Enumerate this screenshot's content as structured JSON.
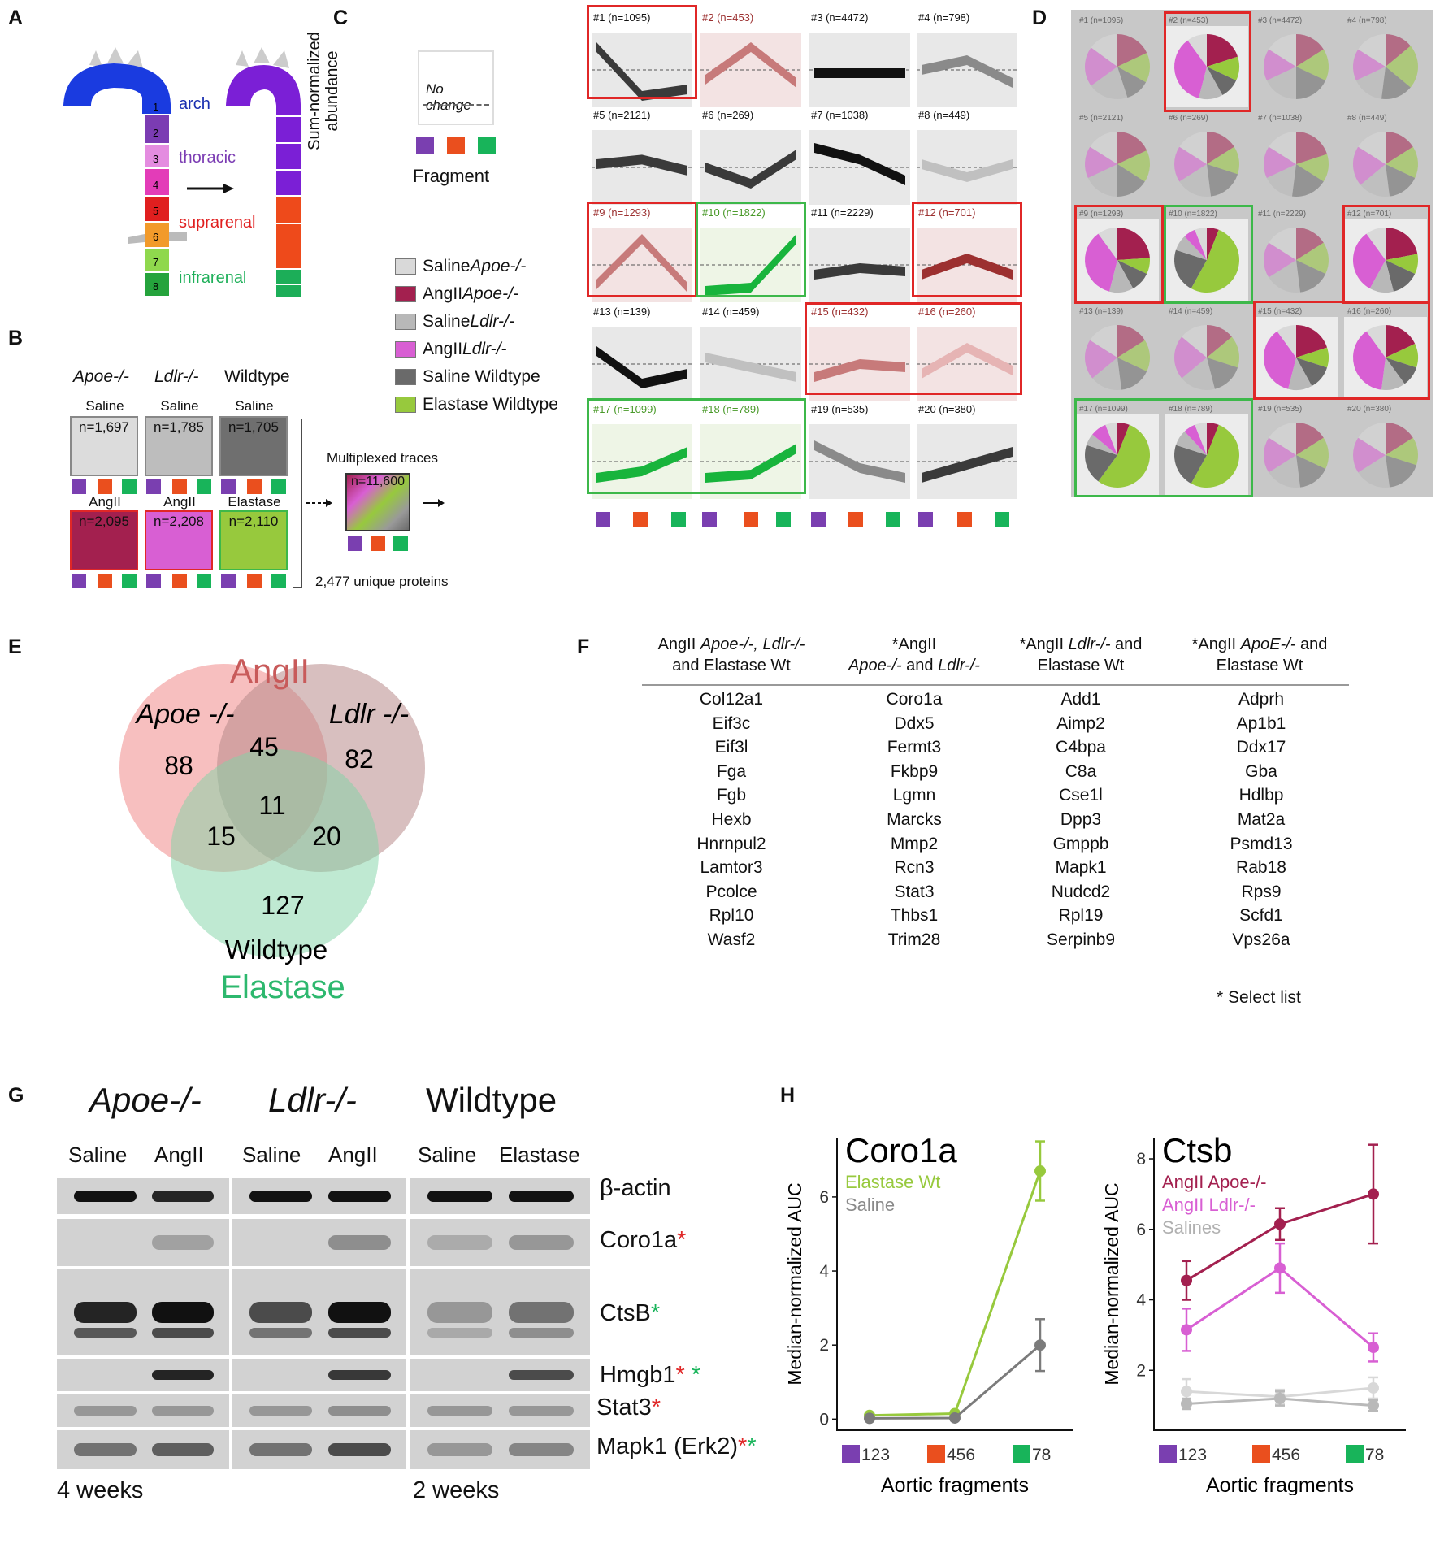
{
  "panels": {
    "A": "A",
    "B": "B",
    "C": "C",
    "D": "D",
    "E": "E",
    "F": "F",
    "G": "G",
    "H": "H"
  },
  "colors": {
    "purple": "#7a3fb0",
    "orange": "#ea4f1e",
    "green": "#18b45a",
    "saline_apoe": "#d9d9d9",
    "angii_apoe": "#a3204f",
    "saline_ldlr": "#b8b8b8",
    "angii_ldlr": "#d85fd3",
    "saline_wt": "#6a6a6a",
    "elastase_wt": "#97c93d",
    "red_box": "#e02727",
    "green_box": "#3db84a"
  },
  "panel_a": {
    "segment_numbers": [
      "1",
      "2",
      "3",
      "4",
      "5",
      "6",
      "7",
      "8"
    ],
    "regions": {
      "arch": "arch",
      "thoracic": "thoracic",
      "suprarenal": "suprarenal",
      "infrarenal": "infrarenal"
    }
  },
  "panel_b": {
    "genotypes": [
      "Apoe-/-",
      "Ldlr-/-",
      "Wildtype"
    ],
    "top_row": [
      {
        "label": "Saline",
        "n": "n=1,697"
      },
      {
        "label": "Saline",
        "n": "n=1,785"
      },
      {
        "label": "Saline",
        "n": "n=1,705"
      }
    ],
    "bottom_row": [
      {
        "label": "AngII",
        "n": "n=2,095"
      },
      {
        "label": "AngII",
        "n": "n=2,208"
      },
      {
        "label": "Elastase",
        "n": "n=2,110"
      }
    ],
    "multiplexed_label": "Multiplexed traces",
    "multiplexed_n": "n=11,600",
    "unique_proteins": "2,477 unique proteins"
  },
  "panel_c": {
    "y_label_line1": "Sum-normalized",
    "y_label_line2": "abundance",
    "no_change": "No change",
    "x_label": "Fragment",
    "legend": [
      {
        "label": "Saline ",
        "italic": "Apoe-/-"
      },
      {
        "label": "AngII ",
        "italic": "Apoe-/-"
      },
      {
        "label": "Saline ",
        "italic": "Ldlr-/-"
      },
      {
        "label": "AngII ",
        "italic": "Ldlr-/-"
      },
      {
        "label": "Saline Wildtype",
        "italic": ""
      },
      {
        "label": "Elastase Wildtype",
        "italic": ""
      }
    ],
    "clusters": [
      {
        "label": "#1 (n=1095)",
        "shape": [
          0.85,
          0.1,
          0.2
        ],
        "tone": "dark",
        "box": "none"
      },
      {
        "label": "#2 (n=453)",
        "shape": [
          0.35,
          0.85,
          0.3
        ],
        "tone": "rose",
        "box": "red"
      },
      {
        "label": "#3 (n=4472)",
        "shape": [
          0.45,
          0.45,
          0.45
        ],
        "tone": "black",
        "box": "none"
      },
      {
        "label": "#4 (n=798)",
        "shape": [
          0.5,
          0.65,
          0.3
        ],
        "tone": "gray",
        "box": "none"
      },
      {
        "label": "#5 (n=2121)",
        "shape": [
          0.55,
          0.62,
          0.45
        ],
        "tone": "dark",
        "box": "none"
      },
      {
        "label": "#6 (n=269)",
        "shape": [
          0.5,
          0.25,
          0.7
        ],
        "tone": "dark",
        "box": "none"
      },
      {
        "label": "#7 (n=1038)",
        "shape": [
          0.8,
          0.62,
          0.3
        ],
        "tone": "black",
        "box": "none"
      },
      {
        "label": "#8 (n=449)",
        "shape": [
          0.55,
          0.35,
          0.55
        ],
        "tone": "light",
        "box": "none"
      },
      {
        "label": "#9 (n=1293)",
        "shape": [
          0.2,
          0.9,
          0.15
        ],
        "tone": "rose",
        "box": "red"
      },
      {
        "label": "#10 (n=1822)",
        "shape": [
          0.1,
          0.15,
          0.9
        ],
        "tone": "green",
        "box": "green"
      },
      {
        "label": "#11 (n=2229)",
        "shape": [
          0.35,
          0.45,
          0.4
        ],
        "tone": "dark",
        "box": "none"
      },
      {
        "label": "#12 (n=701)",
        "shape": [
          0.35,
          0.6,
          0.35
        ],
        "tone": "maroon",
        "box": "red"
      },
      {
        "label": "#13 (n=139)",
        "shape": [
          0.7,
          0.2,
          0.35
        ],
        "tone": "black",
        "box": "none"
      },
      {
        "label": "#14 (n=459)",
        "shape": [
          0.6,
          0.45,
          0.3
        ],
        "tone": "light",
        "box": "none"
      },
      {
        "label": "#15 (n=432)",
        "shape": [
          0.3,
          0.5,
          0.45
        ],
        "tone": "rose",
        "box": "red"
      },
      {
        "label": "#16 (n=260)",
        "shape": [
          0.35,
          0.75,
          0.4
        ],
        "tone": "pale",
        "box": "red"
      },
      {
        "label": "#17 (n=1099)",
        "shape": [
          0.25,
          0.35,
          0.65
        ],
        "tone": "green",
        "box": "green"
      },
      {
        "label": "#18 (n=789)",
        "shape": [
          0.25,
          0.3,
          0.7
        ],
        "tone": "green",
        "box": "green"
      },
      {
        "label": "#19 (n=535)",
        "shape": [
          0.75,
          0.4,
          0.25
        ],
        "tone": "gray",
        "box": "none"
      },
      {
        "label": "#20 (n=380)",
        "shape": [
          0.25,
          0.45,
          0.65
        ],
        "tone": "dark",
        "box": "none"
      }
    ]
  },
  "panel_e": {
    "title": "AngII",
    "set_apoe": "Apoe -/-",
    "set_ldlr": "Ldlr -/-",
    "set_wt": "Wildtype",
    "set_elastase": "Elastase",
    "counts": {
      "apoe_only": "88",
      "apoe_ldlr": "45",
      "ldlr_only": "82",
      "all": "11",
      "apoe_wt": "15",
      "ldlr_wt": "20",
      "wt_only": "127"
    }
  },
  "panel_f": {
    "headers": [
      {
        "line1_plain": "AngII ",
        "line1_italic": "Apoe-/-, Ldlr-/-",
        "line2_plain": "and Elastase Wt",
        "line2_italic": ""
      },
      {
        "line1_plain": "*AngII",
        "line1_italic": "",
        "line2_plain": " and ",
        "line2_italic": "Apoe-/-",
        "line2_italic2": "Ldlr-/-"
      },
      {
        "line1_plain": "*AngII ",
        "line1_italic": "Ldlr-/-",
        "line1_after": " and",
        "line2_plain": "Elastase Wt"
      },
      {
        "line1_plain": "*AngII ",
        "line1_italic": "ApoE-/-",
        "line1_after": " and",
        "line2_plain": "Elastase Wt"
      }
    ],
    "columns": [
      [
        "Col12a1",
        "Eif3c",
        "Eif3l",
        "Fga",
        "Fgb",
        "Hexb",
        "Hnrnpul2",
        "Lamtor3",
        "Pcolce",
        "Rpl10",
        "Wasf2"
      ],
      [
        "Coro1a",
        "Ddx5",
        "Fermt3",
        "Fkbp9",
        "Lgmn",
        "Marcks",
        "Mmp2",
        "Rcn3",
        "Stat3",
        "Thbs1",
        "Trim28"
      ],
      [
        "Add1",
        "Aimp2",
        "C4bpa",
        "C8a",
        "Cse1l",
        "Dpp3",
        "Gmppb",
        "Mapk1",
        "Nudcd2",
        "Rpl19",
        "Serpinb9"
      ],
      [
        "Adprh",
        "Ap1b1",
        "Ddx17",
        "Gba",
        "Hdlbp",
        "Mat2a",
        "Psmd13",
        "Rab18",
        "Rps9",
        "Scfd1",
        "Vps26a"
      ]
    ],
    "footnote": "* Select list"
  },
  "panel_g": {
    "genotypes": [
      "Apoe-/-",
      "Ldlr-/-",
      "Wildtype"
    ],
    "lanes": [
      "Saline",
      "AngII",
      "Saline",
      "AngII",
      "Saline",
      "Elastase"
    ],
    "proteins": [
      {
        "name": "β-actin",
        "stars": "",
        "stars2": ""
      },
      {
        "name": "Coro1a",
        "stars": "*",
        "stars2": ""
      },
      {
        "name": "CtsB",
        "stars": "",
        "stars2": "*"
      },
      {
        "name": "Hmgb1",
        "stars": "*",
        "stars2": " *"
      },
      {
        "name": "Stat3",
        "stars": "*",
        "stars2": ""
      },
      {
        "name": "Mapk1 (Erk2)",
        "stars": "*",
        "stars2": "*"
      }
    ],
    "time_left": "4 weeks",
    "time_right": "2 weeks"
  },
  "panel_h": {
    "y_label": "Median-normalized AUC",
    "x_label": "Aortic fragments",
    "x_ticks": [
      "123",
      "456",
      "78"
    ],
    "chart_data": [
      {
        "type": "line",
        "title": "Coro1a",
        "x": [
          "123",
          "456",
          "78"
        ],
        "ylabel": "Median-normalized AUC",
        "xlabel": "Aortic fragments",
        "ylim": [
          -0.3,
          7.6
        ],
        "yticks": [
          0,
          2,
          4,
          6
        ],
        "legend": [
          "Elastase Wt",
          "Saline"
        ],
        "series": [
          {
            "name": "Elastase Wt",
            "color": "#97c93d",
            "values": [
              0.1,
              0.15,
              6.7
            ],
            "err": [
              0.05,
              0.05,
              0.8
            ]
          },
          {
            "name": "Saline",
            "color": "#7b7b7b",
            "values": [
              0.02,
              0.03,
              2.0
            ],
            "err": [
              0.03,
              0.03,
              0.7
            ]
          }
        ]
      },
      {
        "type": "line",
        "title": "Ctsb",
        "x": [
          "123",
          "456",
          "78"
        ],
        "ylabel": "Median-normalized AUC",
        "xlabel": "Aortic fragments",
        "ylim": [
          0.3,
          8.6
        ],
        "yticks": [
          2,
          4,
          6,
          8
        ],
        "legend": [
          "AngII Apoe-/-",
          "AngII Ldlr-/-",
          "Salines"
        ],
        "series": [
          {
            "name": "AngII Apoe-/-",
            "color": "#a3204f",
            "values": [
              4.55,
              6.15,
              7.0
            ],
            "err": [
              0.55,
              0.45,
              1.4
            ]
          },
          {
            "name": "AngII Ldlr-/-",
            "color": "#d85fd3",
            "values": [
              3.15,
              4.9,
              2.65
            ],
            "err": [
              0.6,
              0.7,
              0.4
            ]
          },
          {
            "name": "Saline 1",
            "color": "#d8d8d8",
            "values": [
              1.4,
              1.25,
              1.5
            ],
            "err": [
              0.35,
              0.2,
              0.3
            ]
          },
          {
            "name": "Saline 2",
            "color": "#b9b9b9",
            "values": [
              1.05,
              1.2,
              1.0
            ],
            "err": [
              0.15,
              0.2,
              0.15
            ]
          }
        ]
      }
    ]
  }
}
